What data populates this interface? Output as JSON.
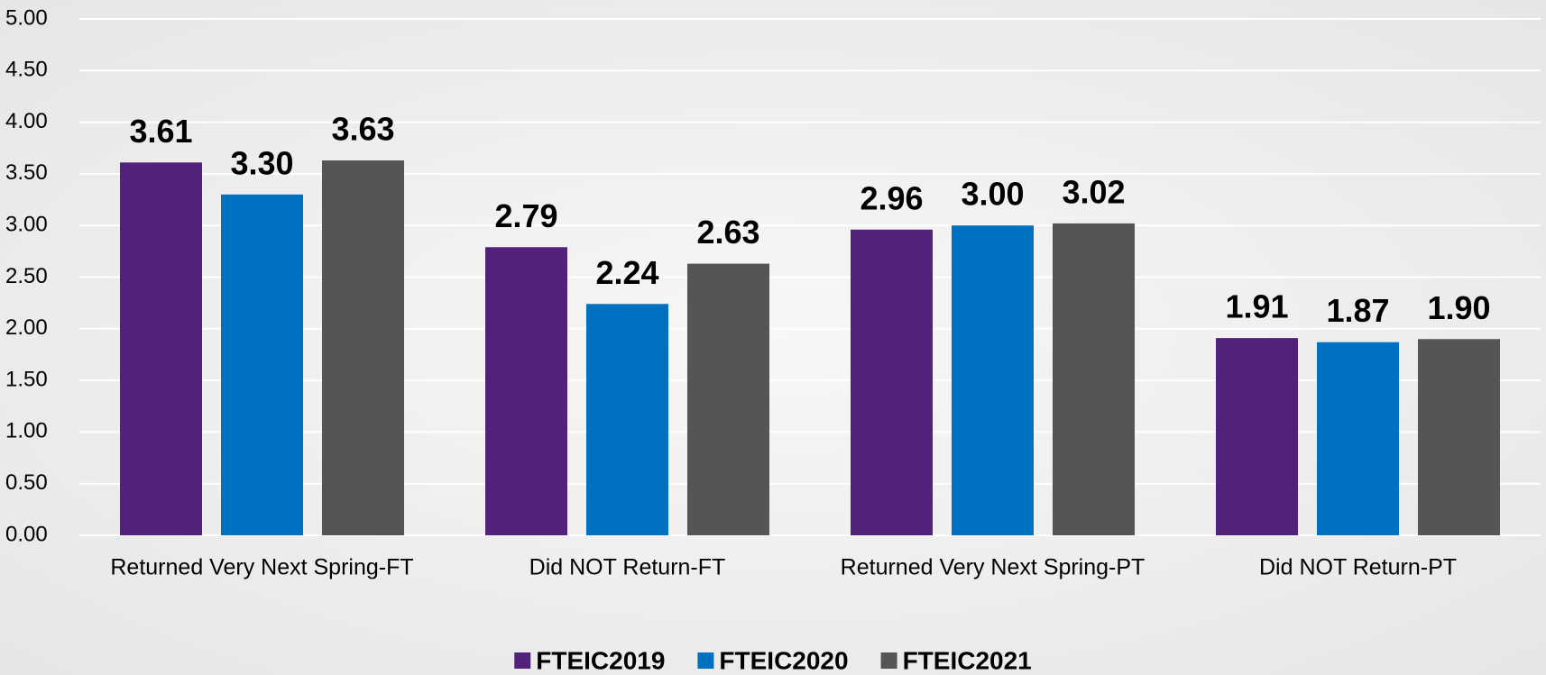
{
  "chart_data": {
    "type": "bar",
    "categories": [
      "Returned Very Next Spring-FT",
      "Did NOT Return-FT",
      "Returned Very Next Spring-PT",
      "Did NOT Return-PT"
    ],
    "series": [
      {
        "name": "FTEIC2019",
        "color": "#52217a",
        "values": [
          3.61,
          2.79,
          2.96,
          1.91
        ],
        "value_labels": [
          "3.61",
          "2.79",
          "2.96",
          "1.91"
        ]
      },
      {
        "name": "FTEIC2020",
        "color": "#0070c0",
        "values": [
          3.3,
          2.24,
          3.0,
          1.87
        ],
        "value_labels": [
          "3.30",
          "2.24",
          "3.00",
          "1.87"
        ]
      },
      {
        "name": "FTEIC2021",
        "color": "#555555",
        "values": [
          3.63,
          2.63,
          3.02,
          1.9
        ],
        "value_labels": [
          "3.63",
          "2.63",
          "3.02",
          "1.90"
        ]
      }
    ],
    "ylim": [
      0,
      5
    ],
    "yticks": [
      {
        "value": 0,
        "label": "0.00"
      },
      {
        "value": 0.5,
        "label": "0.50"
      },
      {
        "value": 1,
        "label": "1.00"
      },
      {
        "value": 1.5,
        "label": "1.50"
      },
      {
        "value": 2,
        "label": "2.00"
      },
      {
        "value": 2.5,
        "label": "2.50"
      },
      {
        "value": 3,
        "label": "3.00"
      },
      {
        "value": 3.5,
        "label": "3.50"
      },
      {
        "value": 4,
        "label": "4.00"
      },
      {
        "value": 4.5,
        "label": "4.50"
      },
      {
        "value": 5,
        "label": "5.00"
      }
    ],
    "grid": true,
    "legend": "bottom"
  }
}
